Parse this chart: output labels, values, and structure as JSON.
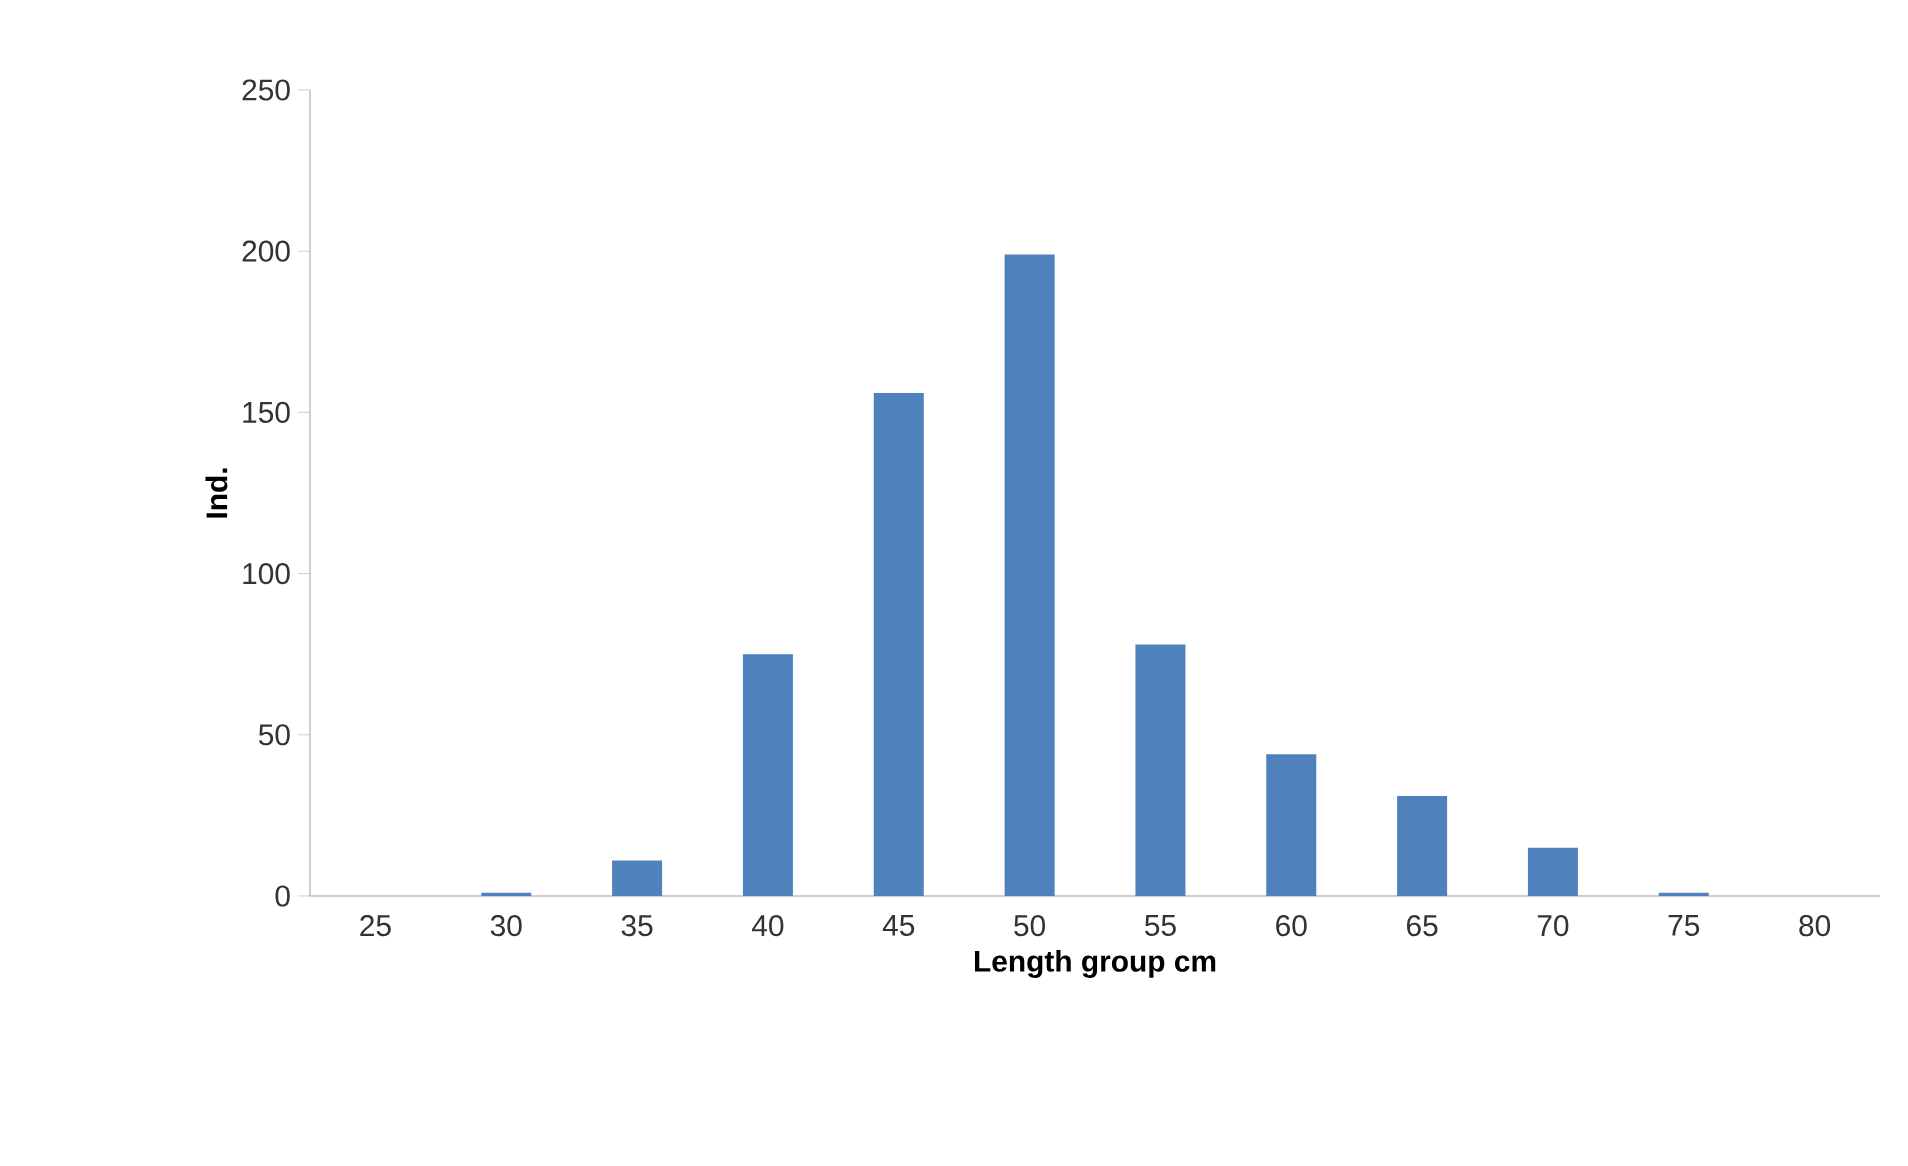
{
  "chart_data": {
    "type": "bar",
    "xlabel": "Length group cm",
    "ylabel": "Ind.",
    "categories": [
      "25",
      "30",
      "35",
      "40",
      "45",
      "50",
      "55",
      "60",
      "65",
      "70",
      "75",
      "80"
    ],
    "values": [
      0,
      1,
      11,
      75,
      156,
      199,
      78,
      44,
      31,
      15,
      1,
      0
    ],
    "color": "#4f81bd",
    "ylim": [
      0,
      250
    ],
    "yticks": [
      0,
      50,
      100,
      150,
      200,
      250
    ]
  }
}
